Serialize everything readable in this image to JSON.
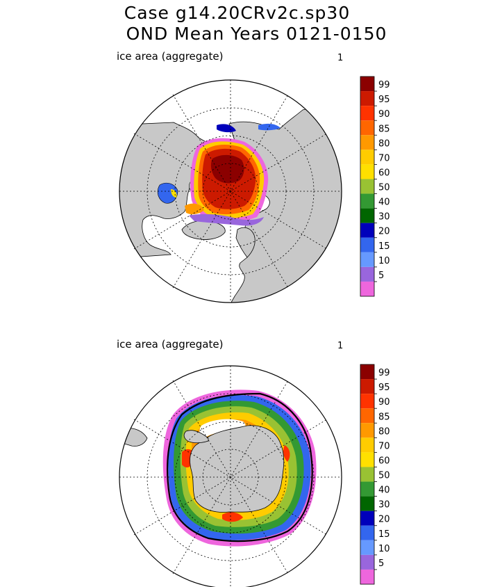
{
  "header": {
    "line1": "Case g14.20CRv2c.sp30",
    "line2": "OND Mean    Years 0121-0150"
  },
  "panels": [
    {
      "id": "north",
      "label": "ice area  (aggregate)",
      "index": "1"
    },
    {
      "id": "south",
      "label": "ice area  (aggregate)",
      "index": "1"
    }
  ],
  "colorbar": {
    "labels": [
      "99",
      "95",
      "90",
      "85",
      "80",
      "70",
      "60",
      "50",
      "40",
      "30",
      "20",
      "15",
      "10",
      "5"
    ],
    "colors": [
      "#8b0000",
      "#cc1a00",
      "#ff3300",
      "#ff6600",
      "#ff9900",
      "#ffcc00",
      "#ffe000",
      "#99c233",
      "#339933",
      "#006600",
      "#0000bb",
      "#3366ee",
      "#6699ff",
      "#9966dd",
      "#ee66dd"
    ]
  },
  "map_colors": {
    "land": "#c8c8c8",
    "ocean": "#ffffff",
    "grid": "#000000"
  }
}
